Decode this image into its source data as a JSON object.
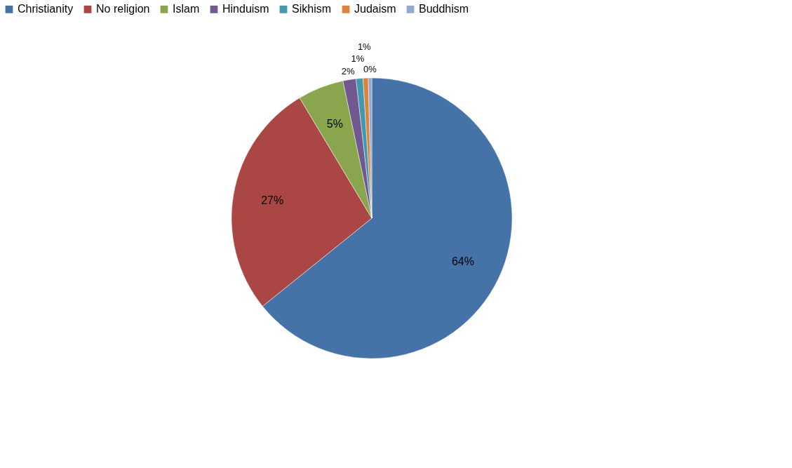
{
  "chart_data": {
    "type": "pie",
    "categories": [
      "Christianity",
      "No religion",
      "Islam",
      "Hinduism",
      "Sikhism",
      "Judaism",
      "Buddhism"
    ],
    "values": [
      64.2,
      27.2,
      5.3,
      1.5,
      0.8,
      0.6,
      0.4
    ],
    "value_labels": [
      "64%",
      "27%",
      "5%",
      "2%",
      "1%",
      "1%",
      "0%"
    ],
    "colors": [
      "#4572a7",
      "#aa4643",
      "#89a54e",
      "#71588f",
      "#4198af",
      "#db843d",
      "#93a9cf"
    ],
    "legend": "top"
  }
}
